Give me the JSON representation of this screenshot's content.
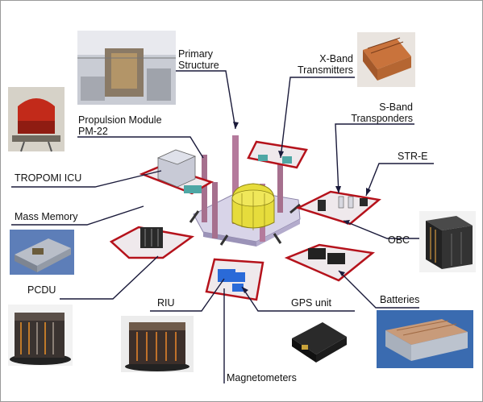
{
  "labels": {
    "primary_structure": [
      "Primary",
      "Structure"
    ],
    "xband": [
      "X-Band",
      "Transmitters"
    ],
    "propulsion": [
      "Propulsion Module",
      "PM-22"
    ],
    "sband": [
      "S-Band",
      "Transponders"
    ],
    "tropomi": "TROPOMI ICU",
    "str_e": "STR-E",
    "mass_memory": "Mass Memory",
    "obc": "OBC",
    "pcdu": "PCDU",
    "riu": "RIU",
    "gps": "GPS unit",
    "batteries": "Batteries",
    "magnetometers": "Magnetometers"
  },
  "colors": {
    "panel_edge": "#b5121b",
    "panel_face": "#efe9ec",
    "deck": "#d8d4e8",
    "tank": "#e6dc3c",
    "strut": "#b47a9c",
    "line": "#1a1a3a"
  }
}
